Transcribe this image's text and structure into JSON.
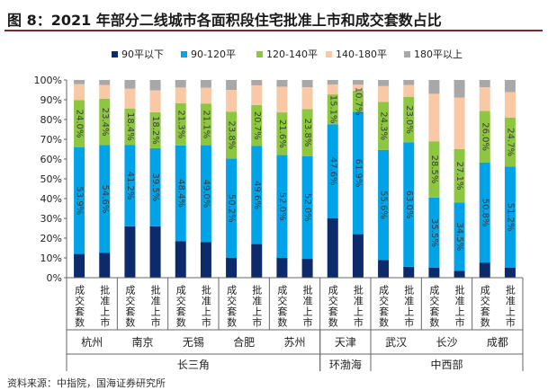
{
  "figure_title": "图 8：2021 年部分二线城市各面积段住宅批准上市和成交套数占比",
  "source": "资料来源：中指院，国海证券研究所",
  "colors": {
    "s90": "#0d2a6b",
    "s90_120": "#00a3e8",
    "s120_140": "#8dc63f",
    "s140_180": "#f9c9a5",
    "s180": "#a8a8a8",
    "title_rule": "#7f2433"
  },
  "chart_data": {
    "type": "stacked-bar",
    "ylim": [
      0,
      100
    ],
    "y_ticks": [
      "0%",
      "10%",
      "20%",
      "30%",
      "40%",
      "50%",
      "60%",
      "70%",
      "80%",
      "90%",
      "100%"
    ],
    "legend": [
      "90平以下",
      "90-120平",
      "120-140平",
      "140-180平",
      "180平以上"
    ],
    "categories": [
      {
        "city": "杭州",
        "type": "成交套数",
        "values": [
          12,
          53.9,
          24.0,
          8,
          2.1
        ]
      },
      {
        "city": "杭州",
        "type": "批准上市",
        "values": [
          12.5,
          54.6,
          23.4,
          7,
          2.5
        ]
      },
      {
        "city": "南京",
        "type": "成交套数",
        "values": [
          26,
          41.2,
          18.4,
          10,
          4.4
        ]
      },
      {
        "city": "南京",
        "type": "批准上市",
        "values": [
          26,
          39.5,
          18.2,
          11,
          5.3
        ]
      },
      {
        "city": "无锡",
        "type": "成交套数",
        "values": [
          18.5,
          48.4,
          21.3,
          8,
          3.8
        ]
      },
      {
        "city": "无锡",
        "type": "批准上市",
        "values": [
          18,
          49.0,
          21.1,
          8,
          3.9
        ]
      },
      {
        "city": "合肥",
        "type": "成交套数",
        "values": [
          10,
          50.2,
          23.8,
          11,
          5.0
        ]
      },
      {
        "city": "合肥",
        "type": "批准上市",
        "values": [
          17,
          49.6,
          20.7,
          10,
          2.7
        ]
      },
      {
        "city": "苏州",
        "type": "成交套数",
        "values": [
          10,
          52.0,
          21.6,
          13,
          3.4
        ]
      },
      {
        "city": "苏州",
        "type": "批准上市",
        "values": [
          9.5,
          52.0,
          23.8,
          11,
          3.7
        ]
      },
      {
        "city": "天津",
        "type": "成交套数",
        "values": [
          30,
          47.6,
          15.1,
          5,
          2.3
        ]
      },
      {
        "city": "天津",
        "type": "批准上市",
        "values": [
          22,
          61.9,
          10.7,
          3,
          2.4
        ]
      },
      {
        "city": "武汉",
        "type": "成交套数",
        "values": [
          9,
          55.6,
          24.3,
          8,
          3.1
        ]
      },
      {
        "city": "武汉",
        "type": "批准上市",
        "values": [
          5.5,
          63.0,
          23.0,
          6,
          2.5
        ]
      },
      {
        "city": "长沙",
        "type": "成交套数",
        "values": [
          5,
          35.5,
          28.5,
          24,
          7.0
        ]
      },
      {
        "city": "长沙",
        "type": "批准上市",
        "values": [
          3.5,
          34.5,
          27.1,
          26,
          8.9
        ]
      },
      {
        "city": "成都",
        "type": "成交套数",
        "values": [
          7.5,
          50.8,
          26.0,
          12,
          3.7
        ]
      },
      {
        "city": "成都",
        "type": "批准上市",
        "values": [
          5,
          51.2,
          24.7,
          13,
          6.1
        ]
      }
    ],
    "data_labels": [
      [
        "53.9%",
        "24.0%"
      ],
      [
        "54.6%",
        "23.4%"
      ],
      [
        "41.2%",
        "18.4%"
      ],
      [
        "39.5%",
        "18.2%"
      ],
      [
        "48.4%",
        "21.3%"
      ],
      [
        "49.0%",
        "21.1%"
      ],
      [
        "50.2%",
        "23.8%"
      ],
      [
        "49.6%",
        "20.7%"
      ],
      [
        "52.0%",
        "21.6%"
      ],
      [
        "52.0%",
        "23.8%"
      ],
      [
        "47.6%",
        "15.1%"
      ],
      [
        "61.9%",
        "10.7%"
      ],
      [
        "55.6%",
        "24.3%"
      ],
      [
        "63.0%",
        "23.0%"
      ],
      [
        "35.5%",
        "28.5%"
      ],
      [
        "34.5%",
        "27.1%"
      ],
      [
        "50.8%",
        "26.0%"
      ],
      [
        "51.2%",
        "24.7%"
      ]
    ],
    "cities": [
      "杭州",
      "南京",
      "无锡",
      "合肥",
      "苏州",
      "天津",
      "武汉",
      "长沙",
      "成都"
    ],
    "regions": [
      {
        "name": "长三角",
        "from": 0,
        "to": 5
      },
      {
        "name": "环渤海",
        "from": 5,
        "to": 6
      },
      {
        "name": "中西部",
        "from": 6,
        "to": 9
      }
    ]
  }
}
